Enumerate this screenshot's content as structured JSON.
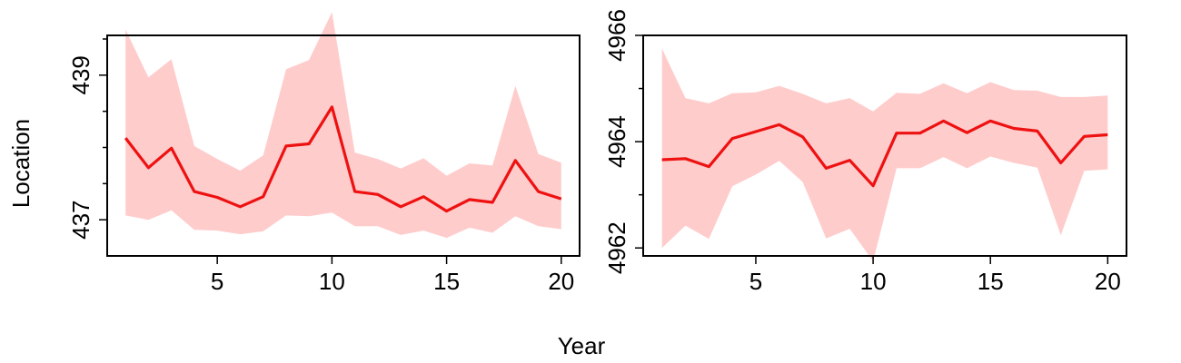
{
  "figure": {
    "ylabel": "Location",
    "xlabel": "Year"
  },
  "chart_data": [
    {
      "type": "line",
      "x": [
        1,
        2,
        3,
        4,
        5,
        6,
        7,
        8,
        9,
        10,
        11,
        12,
        13,
        14,
        15,
        16,
        17,
        18,
        19,
        20
      ],
      "xlim": [
        0.2,
        20.8
      ],
      "ylim": [
        436.5,
        439.55
      ],
      "xticks": [
        5,
        10,
        15,
        20
      ],
      "yticks": [
        437,
        439
      ],
      "ytick_labels": [
        "437",
        "439"
      ],
      "yminor": [
        437.5,
        438,
        438.5,
        439.5
      ],
      "series": [
        {
          "values": [
            438.13,
            437.72,
            437.99,
            437.39,
            437.31,
            437.18,
            437.32,
            438.02,
            438.05,
            438.56,
            437.39,
            437.35,
            437.18,
            437.32,
            437.12,
            437.28,
            437.24,
            437.82,
            437.39,
            437.29
          ],
          "lower": [
            437.06,
            437.0,
            437.13,
            436.86,
            436.85,
            436.8,
            436.84,
            437.06,
            437.05,
            437.1,
            436.91,
            436.91,
            436.79,
            436.85,
            436.75,
            436.89,
            436.82,
            437.05,
            436.91,
            436.87
          ],
          "upper": [
            439.63,
            438.97,
            439.22,
            438.02,
            437.84,
            437.68,
            437.89,
            439.08,
            439.21,
            439.87,
            437.93,
            437.84,
            437.71,
            437.85,
            437.61,
            437.78,
            437.75,
            438.85,
            437.91,
            437.79
          ],
          "color": "#ee1111",
          "band_color": "#ffcccc"
        }
      ]
    },
    {
      "type": "line",
      "x": [
        1,
        2,
        3,
        4,
        5,
        6,
        7,
        8,
        9,
        10,
        11,
        12,
        13,
        14,
        15,
        16,
        17,
        18,
        19,
        20
      ],
      "xlim": [
        0.2,
        20.8
      ],
      "ylim": [
        4961.85,
        4966.0
      ],
      "xticks": [
        5,
        10,
        15,
        20
      ],
      "yticks": [
        4962,
        4964,
        4966
      ],
      "ytick_labels": [
        "4962",
        "4964",
        "4966"
      ],
      "yminor": [
        4963,
        4965
      ],
      "series": [
        {
          "values": [
            4963.66,
            4963.68,
            4963.53,
            4964.06,
            4964.19,
            4964.32,
            4964.09,
            4963.5,
            4963.65,
            4963.17,
            4964.16,
            4964.16,
            4964.39,
            4964.17,
            4964.39,
            4964.25,
            4964.2,
            4963.6,
            4964.1,
            4964.13
          ],
          "lower": [
            4962.0,
            4962.42,
            4962.17,
            4963.16,
            4963.38,
            4963.64,
            4963.24,
            4962.18,
            4962.36,
            4961.75,
            4963.5,
            4963.5,
            4963.71,
            4963.5,
            4963.72,
            4963.6,
            4963.51,
            4962.24,
            4963.45,
            4963.48
          ],
          "upper": [
            4965.75,
            4964.82,
            4964.72,
            4964.91,
            4964.93,
            4965.05,
            4964.9,
            4964.72,
            4964.82,
            4964.57,
            4964.92,
            4964.9,
            4965.1,
            4964.91,
            4965.12,
            4964.97,
            4964.96,
            4964.84,
            4964.84,
            4964.87
          ],
          "color": "#ee1111",
          "band_color": "#ffcccc"
        }
      ]
    }
  ]
}
